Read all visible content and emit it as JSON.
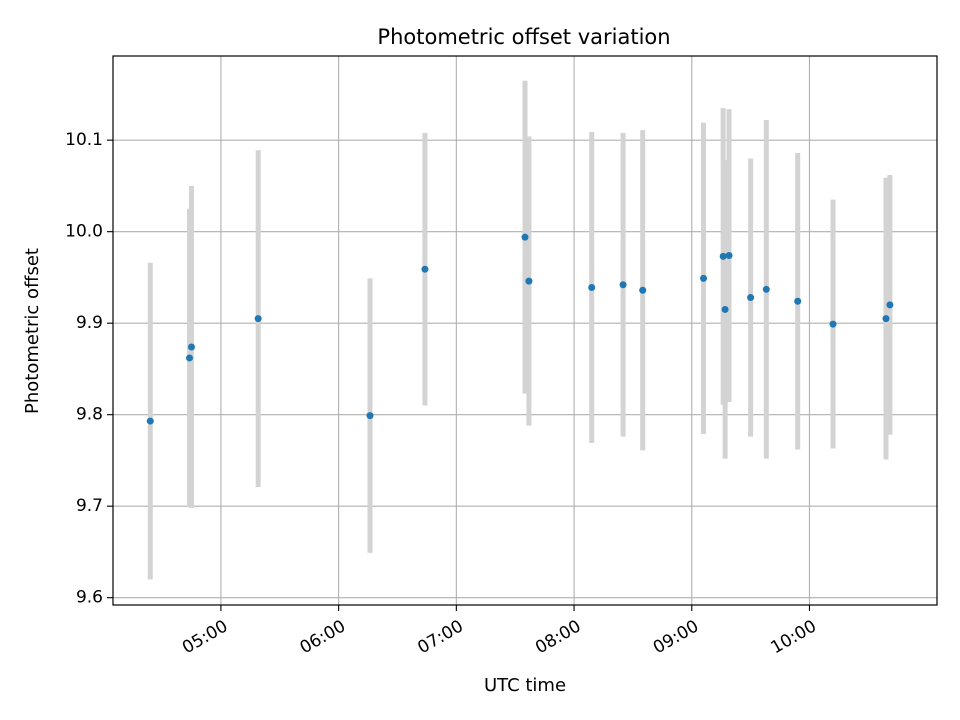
{
  "chart_data": {
    "type": "scatter",
    "title": "Photometric offset variation",
    "xlabel": "UTC time",
    "ylabel": "Photometric offset",
    "xlim": [
      "04:05",
      "11:05"
    ],
    "ylim": [
      9.592,
      10.192
    ],
    "x_ticks": [
      "05:00",
      "06:00",
      "07:00",
      "08:00",
      "09:00",
      "10:00"
    ],
    "y_ticks": [
      "9.6",
      "9.7",
      "9.8",
      "9.9",
      "10.0",
      "10.1"
    ],
    "grid": true,
    "point_color": "#1f77b4",
    "errorbar_color": "#d3d3d3",
    "points": [
      {
        "x": "04:24",
        "y": 9.793,
        "err": 0.173
      },
      {
        "x": "04:44",
        "y": 9.862,
        "err": 0.163
      },
      {
        "x": "04:45",
        "y": 9.874,
        "err": 0.176
      },
      {
        "x": "05:19",
        "y": 9.905,
        "err": 0.184
      },
      {
        "x": "06:16",
        "y": 9.799,
        "err": 0.15
      },
      {
        "x": "06:44",
        "y": 9.959,
        "err": 0.149
      },
      {
        "x": "07:35",
        "y": 9.994,
        "err": 0.171
      },
      {
        "x": "07:37",
        "y": 9.946,
        "err": 0.158
      },
      {
        "x": "08:09",
        "y": 9.939,
        "err": 0.17
      },
      {
        "x": "08:25",
        "y": 9.942,
        "err": 0.166
      },
      {
        "x": "08:35",
        "y": 9.936,
        "err": 0.175
      },
      {
        "x": "09:06",
        "y": 9.949,
        "err": 0.17
      },
      {
        "x": "09:16",
        "y": 9.973,
        "err": 0.162
      },
      {
        "x": "09:17",
        "y": 9.915,
        "err": 0.163
      },
      {
        "x": "09:19",
        "y": 9.974,
        "err": 0.16
      },
      {
        "x": "09:30",
        "y": 9.928,
        "err": 0.152
      },
      {
        "x": "09:38",
        "y": 9.937,
        "err": 0.185
      },
      {
        "x": "09:54",
        "y": 9.924,
        "err": 0.162
      },
      {
        "x": "10:12",
        "y": 9.899,
        "err": 0.136
      },
      {
        "x": "10:39",
        "y": 9.905,
        "err": 0.154
      },
      {
        "x": "10:41",
        "y": 9.92,
        "err": 0.142
      }
    ]
  }
}
